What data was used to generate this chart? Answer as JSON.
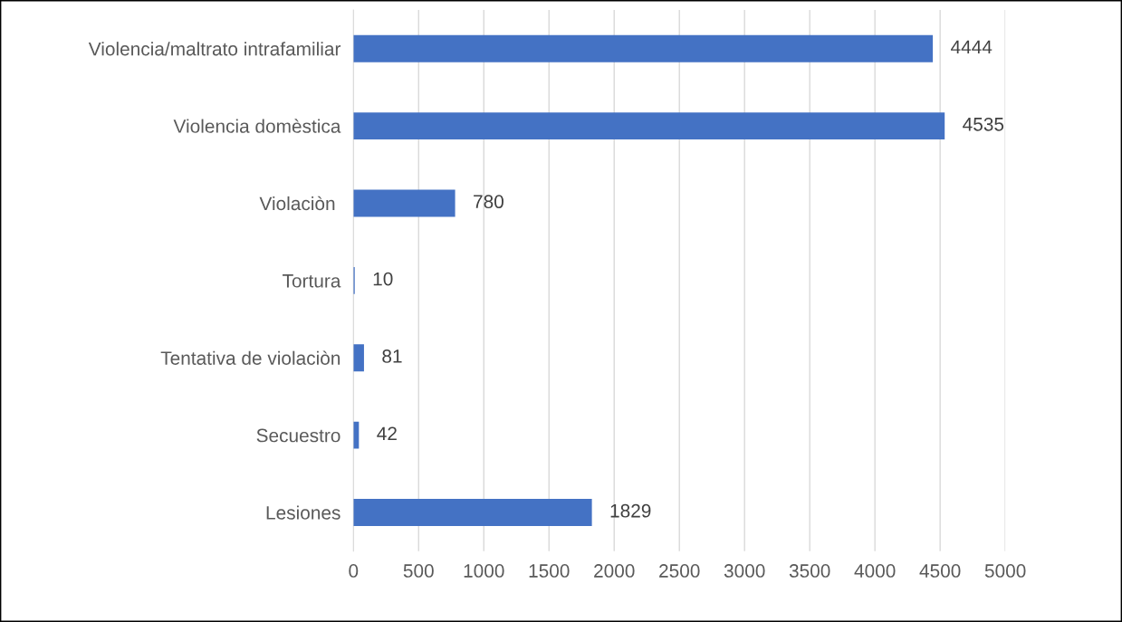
{
  "chart_data": {
    "type": "bar",
    "orientation": "horizontal",
    "categories": [
      "Violencia/maltrato intrafamiliar",
      "Violencia domèstica",
      "Violaciòn ",
      "Tortura",
      "Tentativa de violaciòn",
      "Secuestro",
      "Lesiones"
    ],
    "values": [
      4444,
      4535,
      780,
      10,
      81,
      42,
      1829
    ],
    "color": "#4472c4",
    "xlim": [
      0,
      5000
    ],
    "xticks": [
      0,
      500,
      1000,
      1500,
      2000,
      2500,
      3000,
      3500,
      4000,
      4500,
      5000
    ],
    "grid": "x",
    "data_labels": true
  }
}
